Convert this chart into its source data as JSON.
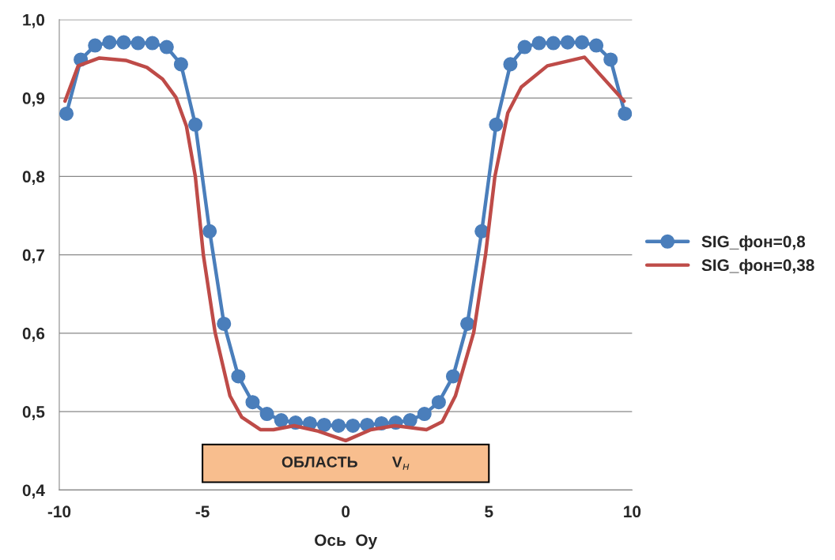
{
  "chart_data": {
    "type": "line",
    "xlabel": "Ось  Oy",
    "xlim": [
      -10,
      10
    ],
    "xticks": [
      -10,
      -5,
      0,
      5,
      10
    ],
    "ylim": [
      0.4,
      1.0
    ],
    "yticks": [
      {
        "value": 0.4,
        "label": "0,4"
      },
      {
        "value": 0.5,
        "label": "0,5"
      },
      {
        "value": 0.6,
        "label": "0,6"
      },
      {
        "value": 0.7,
        "label": "0,7"
      },
      {
        "value": 0.8,
        "label": "0,8"
      },
      {
        "value": 0.9,
        "label": "0,9"
      },
      {
        "value": 1.0,
        "label": "1,0"
      }
    ],
    "grid": "y",
    "legend": "right",
    "bands": [
      {
        "axis": "x",
        "from": -5,
        "to": 5,
        "label": "ОБЛАСТЬ        V$_{н}$",
        "color": "#f8be8e"
      }
    ],
    "series": [
      {
        "name": "SIG_фон=0,8",
        "color": "#4a7ebb",
        "marker": "circle",
        "x": [
          -9.75,
          -9.25,
          -8.75,
          -8.25,
          -7.75,
          -7.25,
          -6.75,
          -6.25,
          -5.75,
          -5.25,
          -4.75,
          -4.25,
          -3.75,
          -3.25,
          -2.75,
          -2.25,
          -1.75,
          -1.25,
          -0.75,
          -0.25,
          0.25,
          0.75,
          1.25,
          1.75,
          2.25,
          2.75,
          3.25,
          3.75,
          4.25,
          4.75,
          5.25,
          5.75,
          6.25,
          6.75,
          7.25,
          7.75,
          8.25,
          8.75,
          9.25,
          9.75
        ],
        "values": [
          0.88,
          0.949,
          0.967,
          0.971,
          0.971,
          0.97,
          0.97,
          0.965,
          0.943,
          0.866,
          0.73,
          0.612,
          0.545,
          0.512,
          0.497,
          0.489,
          0.486,
          0.485,
          0.483,
          0.482,
          0.482,
          0.483,
          0.485,
          0.486,
          0.489,
          0.497,
          0.512,
          0.545,
          0.612,
          0.73,
          0.866,
          0.943,
          0.965,
          0.97,
          0.97,
          0.971,
          0.971,
          0.967,
          0.949,
          0.88
        ]
      },
      {
        "name": "SIG_фон=0,38",
        "color": "#be4b48",
        "marker": "none",
        "x": [
          -9.8,
          -9.34,
          -8.6,
          -7.68,
          -6.94,
          -6.39,
          -5.93,
          -5.56,
          -5.25,
          -4.97,
          -4.56,
          -4.04,
          -3.63,
          -2.98,
          -2.52,
          -1.8,
          -0.96,
          0.0,
          0.88,
          1.71,
          2.82,
          3.37,
          3.83,
          4.47,
          4.89,
          5.21,
          5.66,
          6.13,
          7.04,
          8.34,
          9.72
        ],
        "values": [
          0.896,
          0.941,
          0.951,
          0.948,
          0.939,
          0.924,
          0.901,
          0.864,
          0.8,
          0.7,
          0.601,
          0.52,
          0.493,
          0.477,
          0.477,
          0.482,
          0.475,
          0.463,
          0.477,
          0.482,
          0.477,
          0.487,
          0.52,
          0.601,
          0.702,
          0.8,
          0.881,
          0.914,
          0.941,
          0.952,
          0.896
        ]
      }
    ]
  }
}
